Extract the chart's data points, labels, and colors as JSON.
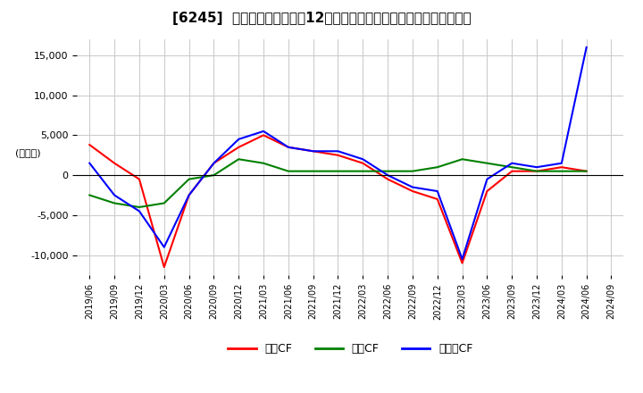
{
  "title": "[6245]  キャッシュフローの12か月移動合計の対前年同期増減額の推移",
  "ylabel": "(百万円)",
  "ylim": [
    -12500,
    17000
  ],
  "yticks": [
    -10000,
    -5000,
    0,
    5000,
    10000,
    15000
  ],
  "legend_labels": [
    "営業CF",
    "投資CF",
    "フリーCF"
  ],
  "line_colors": [
    "#ff0000",
    "#008000",
    "#0000ff"
  ],
  "x_labels": [
    "2019/06",
    "2019/09",
    "2019/12",
    "2020/03",
    "2020/06",
    "2020/09",
    "2020/12",
    "2021/03",
    "2021/06",
    "2021/09",
    "2021/12",
    "2022/03",
    "2022/06",
    "2022/09",
    "2022/12",
    "2023/03",
    "2023/06",
    "2023/09",
    "2023/12",
    "2024/03",
    "2024/06",
    "2024/09"
  ],
  "operating_cf": [
    3800,
    1500,
    -500,
    -11500,
    -2500,
    1500,
    3500,
    5000,
    3500,
    3000,
    2500,
    1500,
    -500,
    -2000,
    -3000,
    -11000,
    -2000,
    500,
    500,
    1000,
    500,
    null
  ],
  "investing_cf": [
    -2500,
    -3500,
    -4000,
    -3500,
    -500,
    0,
    2000,
    1500,
    500,
    500,
    500,
    500,
    500,
    500,
    1000,
    2000,
    1500,
    1000,
    500,
    500,
    500,
    null
  ],
  "free_cf": [
    1500,
    -2500,
    -4500,
    -9000,
    -2500,
    1500,
    4500,
    5500,
    3500,
    3000,
    3000,
    2000,
    0,
    -1500,
    -2000,
    -10500,
    -500,
    1500,
    1000,
    1500,
    16000,
    null
  ],
  "background_color": "#ffffff",
  "grid_color": "#cccccc"
}
